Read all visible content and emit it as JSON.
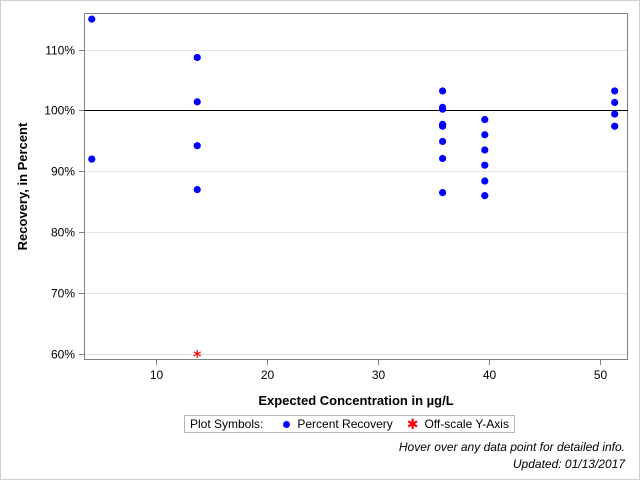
{
  "chart_data": {
    "type": "scatter",
    "xlabel": "Expected Concentration in µg/L",
    "ylabel": "Recovery, in Percent",
    "xlim": [
      3.5,
      52.5
    ],
    "ylim": [
      59,
      116
    ],
    "x_ticks": [
      10,
      20,
      30,
      40,
      50
    ],
    "y_ticks": [
      60,
      70,
      80,
      90,
      100,
      110
    ],
    "y_tick_labels": [
      "60%",
      "70%",
      "80%",
      "90%",
      "100%",
      "110%"
    ],
    "reference_line_y": 100,
    "grid": "horizontal",
    "series": [
      {
        "name": "Percent Recovery",
        "color": "#0000ff",
        "marker": "circle",
        "points": [
          {
            "x": 4.2,
            "y": 115.0
          },
          {
            "x": 4.2,
            "y": 92.0
          },
          {
            "x": 13.7,
            "y": 108.7
          },
          {
            "x": 13.7,
            "y": 101.4
          },
          {
            "x": 13.7,
            "y": 94.2
          },
          {
            "x": 13.7,
            "y": 87.0
          },
          {
            "x": 35.8,
            "y": 103.2
          },
          {
            "x": 35.8,
            "y": 100.5
          },
          {
            "x": 35.8,
            "y": 100.2
          },
          {
            "x": 35.8,
            "y": 97.7
          },
          {
            "x": 35.8,
            "y": 97.4
          },
          {
            "x": 35.8,
            "y": 94.9
          },
          {
            "x": 35.8,
            "y": 92.1
          },
          {
            "x": 35.8,
            "y": 86.5
          },
          {
            "x": 39.6,
            "y": 98.5
          },
          {
            "x": 39.6,
            "y": 96.0
          },
          {
            "x": 39.6,
            "y": 93.5
          },
          {
            "x": 39.6,
            "y": 91.0
          },
          {
            "x": 39.6,
            "y": 88.4
          },
          {
            "x": 39.6,
            "y": 86.0
          },
          {
            "x": 51.3,
            "y": 103.2
          },
          {
            "x": 51.3,
            "y": 101.3
          },
          {
            "x": 51.3,
            "y": 99.4
          },
          {
            "x": 51.3,
            "y": 97.4
          }
        ]
      },
      {
        "name": "Off-scale Y-Axis",
        "color": "#ff0000",
        "marker": "asterisk",
        "points": [
          {
            "x": 13.7,
            "y": 60
          }
        ]
      }
    ]
  },
  "legend": {
    "title": "Plot Symbols:",
    "item1": "Percent Recovery",
    "item2": "Off-scale Y-Axis"
  },
  "footnote": {
    "hover": "Hover over any data point for detailed info.",
    "updated": "Updated: 01/13/2017"
  }
}
